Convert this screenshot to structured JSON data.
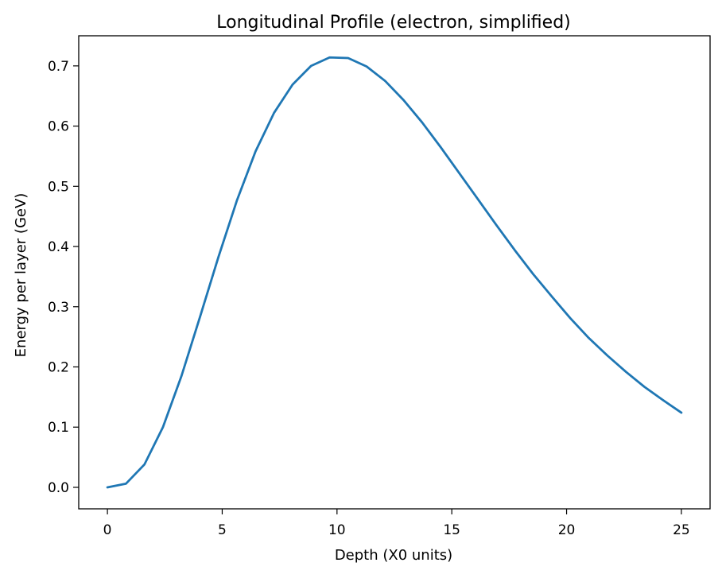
{
  "chart_data": {
    "type": "line",
    "title": "Longitudinal Profile (electron, simplified)",
    "xlabel": "Depth (X0 units)",
    "ylabel": "Energy per layer (GeV)",
    "xlim": [
      -1.25,
      26.25
    ],
    "ylim": [
      -0.0357,
      0.75
    ],
    "xticks": [
      0,
      5,
      10,
      15,
      20,
      25
    ],
    "xtick_labels": [
      "0",
      "5",
      "10",
      "15",
      "20",
      "25"
    ],
    "yticks": [
      0.0,
      0.1,
      0.2,
      0.3,
      0.4,
      0.5,
      0.6,
      0.7
    ],
    "ytick_labels": [
      "0.0",
      "0.1",
      "0.2",
      "0.3",
      "0.4",
      "0.5",
      "0.6",
      "0.7"
    ],
    "grid": false,
    "legend": "none",
    "series": [
      {
        "color": "#1f77b4",
        "x": [
          0,
          0.806,
          1.613,
          2.419,
          3.226,
          4.032,
          4.839,
          5.645,
          6.452,
          7.258,
          8.065,
          8.871,
          9.677,
          10.484,
          11.29,
          12.097,
          12.903,
          13.71,
          14.516,
          15.323,
          16.129,
          16.935,
          17.742,
          18.548,
          19.355,
          20.161,
          20.968,
          21.774,
          22.581,
          23.387,
          24.194,
          25.0
        ],
        "y": [
          0.0,
          0.006,
          0.038,
          0.1,
          0.185,
          0.283,
          0.383,
          0.477,
          0.558,
          0.622,
          0.669,
          0.7,
          0.714,
          0.713,
          0.699,
          0.675,
          0.643,
          0.606,
          0.565,
          0.522,
          0.479,
          0.436,
          0.394,
          0.354,
          0.317,
          0.281,
          0.248,
          0.219,
          0.192,
          0.167,
          0.145,
          0.124
        ]
      }
    ]
  }
}
